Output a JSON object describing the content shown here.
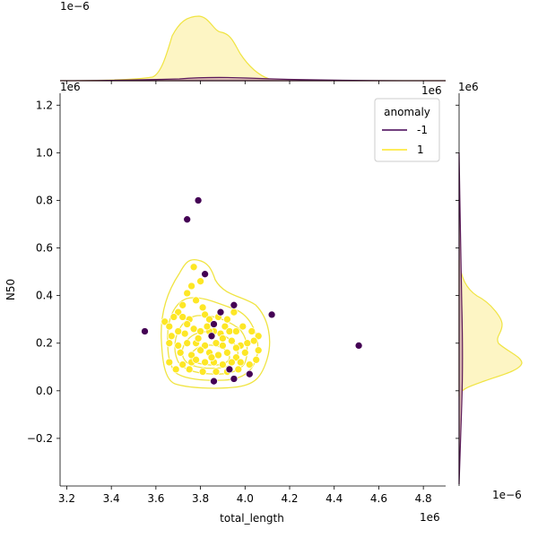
{
  "chart_data": {
    "type": "scatter",
    "xlabel": "total_length",
    "ylabel": "N50",
    "xlim": [
      3.17,
      4.9
    ],
    "ylim": [
      -0.4,
      1.25
    ],
    "x_ticks": [
      3.2,
      3.4,
      3.6,
      3.8,
      4.0,
      4.2,
      4.4,
      4.6,
      4.8
    ],
    "x_tick_labels": [
      "3.2",
      "3.4",
      "3.6",
      "3.8",
      "4.0",
      "4.2",
      "4.4",
      "4.6",
      "4.8"
    ],
    "y_ticks": [
      -0.2,
      0.0,
      0.2,
      0.4,
      0.6,
      0.8,
      1.0,
      1.2
    ],
    "y_tick_labels": [
      "−0.2",
      "0.0",
      "0.2",
      "0.4",
      "0.6",
      "0.8",
      "1.0",
      "1.2"
    ],
    "x_offset_label": "1e6",
    "y_offset_label": "1e6",
    "top_margin_offset_label": "1e−6",
    "right_margin_offset_label": "1e−6",
    "grid": false,
    "legend": {
      "title": "anomaly",
      "placement": "top-right",
      "entries": [
        {
          "label": "-1",
          "color": "#440154"
        },
        {
          "label": "1",
          "color": "#fde725"
        }
      ]
    },
    "series": [
      {
        "name": "-1",
        "color": "#440154",
        "points": [
          [
            3.79,
            0.8
          ],
          [
            3.74,
            0.72
          ],
          [
            3.82,
            0.49
          ],
          [
            3.55,
            0.25
          ],
          [
            3.95,
            0.36
          ],
          [
            4.12,
            0.32
          ],
          [
            3.89,
            0.33
          ],
          [
            3.86,
            0.28
          ],
          [
            4.51,
            0.19
          ],
          [
            3.86,
            0.04
          ],
          [
            3.95,
            0.05
          ],
          [
            3.93,
            0.09
          ],
          [
            4.02,
            0.07
          ],
          [
            3.85,
            0.23
          ]
        ]
      },
      {
        "name": "1",
        "color": "#fde725",
        "points": [
          [
            3.77,
            0.52
          ],
          [
            3.8,
            0.46
          ],
          [
            3.76,
            0.44
          ],
          [
            3.74,
            0.41
          ],
          [
            3.78,
            0.38
          ],
          [
            3.72,
            0.36
          ],
          [
            3.81,
            0.35
          ],
          [
            3.7,
            0.33
          ],
          [
            3.64,
            0.29
          ],
          [
            3.66,
            0.27
          ],
          [
            3.68,
            0.31
          ],
          [
            3.72,
            0.31
          ],
          [
            3.75,
            0.3
          ],
          [
            3.82,
            0.32
          ],
          [
            3.84,
            0.3
          ],
          [
            3.88,
            0.31
          ],
          [
            3.92,
            0.3
          ],
          [
            3.95,
            0.33
          ],
          [
            3.91,
            0.27
          ],
          [
            3.86,
            0.25
          ],
          [
            3.7,
            0.25
          ],
          [
            3.73,
            0.24
          ],
          [
            3.77,
            0.26
          ],
          [
            3.8,
            0.25
          ],
          [
            3.84,
            0.25
          ],
          [
            3.89,
            0.24
          ],
          [
            3.93,
            0.25
          ],
          [
            3.96,
            0.25
          ],
          [
            3.99,
            0.27
          ],
          [
            4.03,
            0.25
          ],
          [
            4.06,
            0.23
          ],
          [
            3.66,
            0.2
          ],
          [
            3.7,
            0.19
          ],
          [
            3.74,
            0.2
          ],
          [
            3.78,
            0.2
          ],
          [
            3.82,
            0.19
          ],
          [
            3.87,
            0.2
          ],
          [
            3.9,
            0.19
          ],
          [
            3.94,
            0.21
          ],
          [
            3.98,
            0.19
          ],
          [
            4.01,
            0.2
          ],
          [
            4.04,
            0.21
          ],
          [
            3.71,
            0.16
          ],
          [
            3.76,
            0.15
          ],
          [
            3.8,
            0.17
          ],
          [
            3.84,
            0.16
          ],
          [
            3.88,
            0.15
          ],
          [
            3.92,
            0.16
          ],
          [
            3.96,
            0.14
          ],
          [
            4.0,
            0.16
          ],
          [
            4.06,
            0.17
          ],
          [
            3.66,
            0.12
          ],
          [
            3.72,
            0.11
          ],
          [
            3.76,
            0.12
          ],
          [
            3.82,
            0.12
          ],
          [
            3.86,
            0.12
          ],
          [
            3.9,
            0.11
          ],
          [
            3.94,
            0.12
          ],
          [
            3.98,
            0.12
          ],
          [
            4.02,
            0.11
          ],
          [
            3.69,
            0.09
          ],
          [
            3.75,
            0.09
          ],
          [
            3.81,
            0.08
          ],
          [
            3.87,
            0.08
          ],
          [
            3.92,
            0.08
          ],
          [
            3.97,
            0.09
          ],
          [
            4.02,
            0.07
          ],
          [
            3.83,
            0.27
          ],
          [
            3.74,
            0.28
          ],
          [
            3.79,
            0.22
          ],
          [
            3.9,
            0.22
          ],
          [
            3.96,
            0.18
          ],
          [
            3.85,
            0.14
          ],
          [
            3.78,
            0.13
          ],
          [
            3.67,
            0.23
          ],
          [
            4.05,
            0.13
          ]
        ]
      }
    ]
  }
}
